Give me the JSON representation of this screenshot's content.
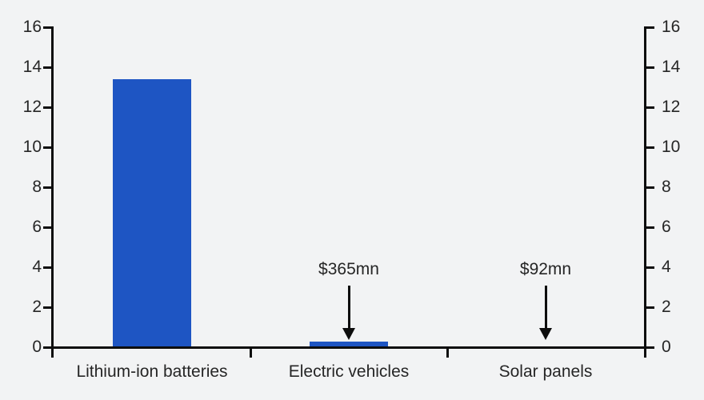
{
  "chart_data": {
    "type": "bar",
    "title": "",
    "xlabel": "",
    "ylabel": "",
    "categories": [
      "Lithium-ion batteries",
      "Electric vehicles",
      "Solar panels"
    ],
    "values": [
      13.5,
      0.365,
      0.092
    ],
    "annotations": [
      {
        "category_index": 1,
        "label": "$365mn"
      },
      {
        "category_index": 2,
        "label": "$92mn"
      }
    ],
    "ylim": [
      0,
      16
    ],
    "yticks": [
      0,
      2,
      4,
      6,
      8,
      10,
      12,
      14,
      16
    ],
    "y_axis_sides": [
      "left",
      "right"
    ],
    "grid": false,
    "legend": "none",
    "bar_color": "#1e55c3",
    "axis_color": "#0d0d0d",
    "text_color": "#262626",
    "background_color": "#f2f3f4"
  }
}
